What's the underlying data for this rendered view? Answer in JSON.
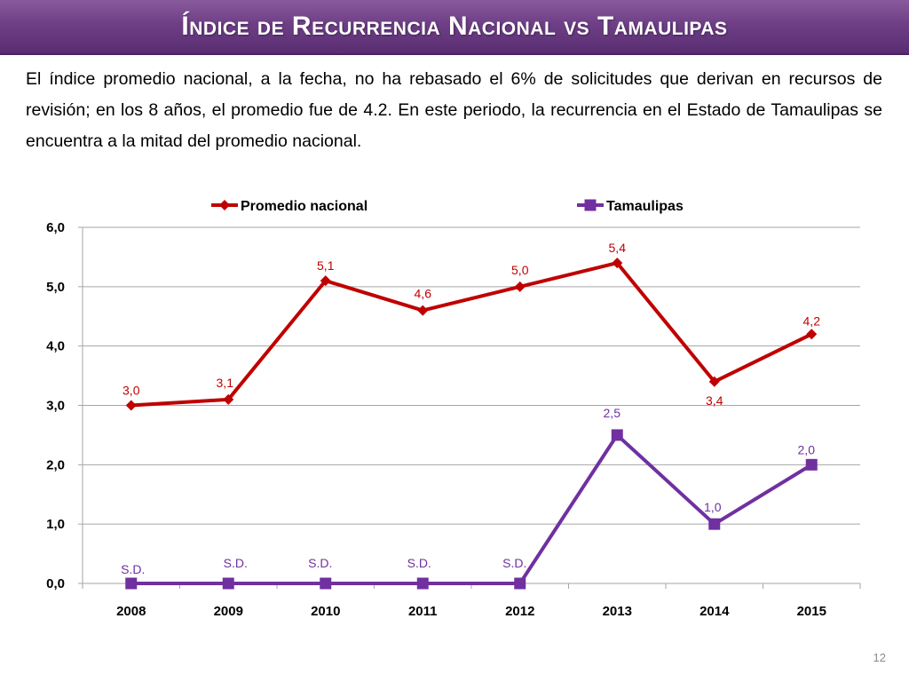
{
  "slide": {
    "title": "Índice de Recurrencia Nacional vs Tamaulipas",
    "body": "El índice promedio nacional, a la fecha, no ha rebasado el 6% de solicitudes que derivan en recursos de revisión; en los 8 años, el promedio fue de 4.2. En este periodo, la recurrencia en el Estado de Tamaulipas se encuentra a la mitad del promedio nacional.",
    "page_number": "12",
    "colors": {
      "title_bar": "#6e3f86",
      "series_nacional": "#c00000",
      "series_tamaulipas": "#7030a0",
      "grid": "#a6a6a6"
    }
  },
  "chart_data": {
    "type": "line",
    "categories": [
      "2008",
      "2009",
      "2010",
      "2011",
      "2012",
      "2013",
      "2014",
      "2015"
    ],
    "ylim": [
      0,
      6
    ],
    "yticks": [
      "0,0",
      "1,0",
      "2,0",
      "3,0",
      "4,0",
      "5,0",
      "6,0"
    ],
    "grid": true,
    "legend": "top-center",
    "series": [
      {
        "name": "Promedio nacional",
        "color": "#c00000",
        "marker": "diamond",
        "values": [
          3.0,
          3.1,
          5.1,
          4.6,
          5.0,
          5.4,
          3.4,
          4.2
        ],
        "labels": [
          "3,0",
          "3,1",
          "5,1",
          "4,6",
          "5,0",
          "5,4",
          "3,4",
          "4,2"
        ]
      },
      {
        "name": "Tamaulipas",
        "color": "#7030a0",
        "marker": "square",
        "values": [
          0,
          0,
          0,
          0,
          0,
          2.5,
          1.0,
          2.0
        ],
        "labels": [
          "S.D.",
          "S.D.",
          "S.D.",
          "S.D.",
          "S.D.",
          "2,5",
          "1,0",
          "2,0"
        ]
      }
    ]
  }
}
